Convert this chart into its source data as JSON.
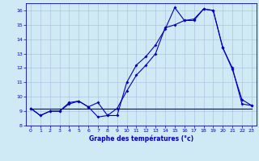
{
  "xlabel": "Graphe des températures (°c)",
  "xlim": [
    -0.5,
    23.5
  ],
  "ylim": [
    8,
    16.5
  ],
  "yticks": [
    8,
    9,
    10,
    11,
    12,
    13,
    14,
    15,
    16
  ],
  "xticks": [
    0,
    1,
    2,
    3,
    4,
    5,
    6,
    7,
    8,
    9,
    10,
    11,
    12,
    13,
    14,
    15,
    16,
    17,
    18,
    19,
    20,
    21,
    22,
    23
  ],
  "background_color": "#cfe9f5",
  "grid_color": "#aabbdd",
  "line_color": "#0000bb",
  "line1_x": [
    0,
    1,
    2,
    3,
    4,
    5,
    6,
    7,
    8,
    9,
    10,
    11,
    12,
    13,
    14,
    15,
    16,
    17,
    18,
    19,
    20,
    21,
    22,
    23
  ],
  "line1_y": [
    9.2,
    8.7,
    9.0,
    9.0,
    9.5,
    9.7,
    9.3,
    8.6,
    8.7,
    8.7,
    11.0,
    12.2,
    12.8,
    13.6,
    14.7,
    16.2,
    15.3,
    15.3,
    16.1,
    16.0,
    13.4,
    11.9,
    9.8,
    9.4
  ],
  "line2_x": [
    0,
    1,
    2,
    3,
    4,
    5,
    6,
    7,
    8,
    9,
    10,
    11,
    12,
    13,
    14,
    15,
    16,
    17,
    18,
    19,
    20,
    21,
    22,
    23
  ],
  "line2_y": [
    9.2,
    8.7,
    9.0,
    9.0,
    9.6,
    9.7,
    9.3,
    9.6,
    8.7,
    9.2,
    10.4,
    11.5,
    12.2,
    13.0,
    14.8,
    15.0,
    15.3,
    15.4,
    16.1,
    16.0,
    13.4,
    12.0,
    9.5,
    9.4
  ],
  "line3_x": [
    0,
    23
  ],
  "line3_y": [
    9.2,
    9.2
  ],
  "marker_size": 2.0,
  "line_width": 0.8,
  "tick_labelsize": 4.5,
  "xlabel_fontsize": 5.5
}
